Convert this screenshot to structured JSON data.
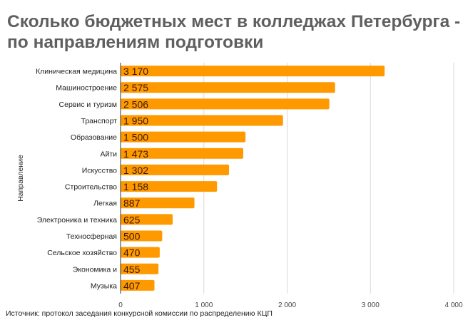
{
  "chart_data": {
    "type": "bar",
    "orientation": "horizontal",
    "title": "Сколько бюджетных мест в колледжах Петербурга - по направлениям подготовки",
    "ylabel": "Направление",
    "xlabel": "",
    "categories": [
      "Клиническая медицина",
      "Машиностроение",
      "Сервис и туризм",
      "Транспорт",
      "Образование",
      "Айти",
      "Искусство",
      "Строительство",
      "Легкая",
      "Электроника и техника",
      "Техносферная",
      "Сельское хозяйство",
      "Экономика и",
      "Музыка"
    ],
    "values": [
      3170,
      2575,
      2506,
      1950,
      1500,
      1473,
      1302,
      1158,
      887,
      625,
      500,
      470,
      455,
      407
    ],
    "value_labels": [
      "3 170",
      "2 575",
      "2 506",
      "1 950",
      "1 500",
      "1 473",
      "1 302",
      "1 158",
      "887",
      "625",
      "500",
      "470",
      "455",
      "407"
    ],
    "xlim": [
      0,
      4000
    ],
    "xticks": [
      0,
      1000,
      2000,
      3000,
      4000
    ],
    "xtick_labels": [
      "0",
      "1 000",
      "2 000",
      "3 000",
      "4 000"
    ],
    "grid": true,
    "bar_color": "#ff9900",
    "source": "Источник: протокол заседания конкурсной комиссии по распределению КЦП"
  }
}
